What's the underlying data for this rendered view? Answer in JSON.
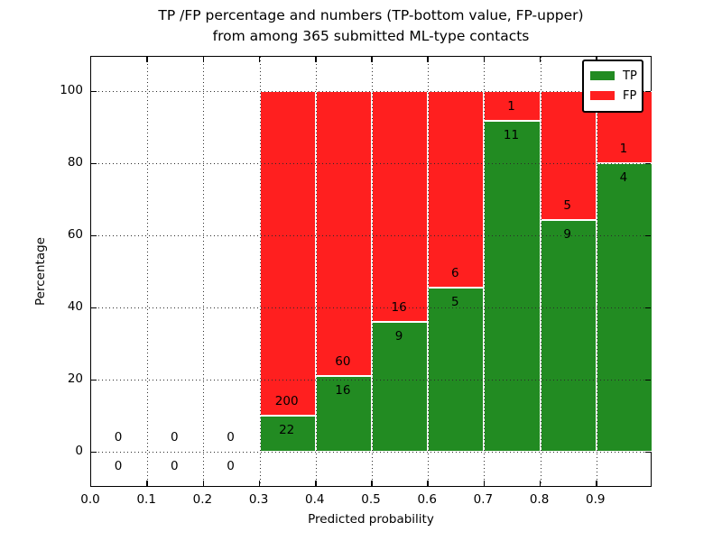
{
  "figure": {
    "title_line1": "TP /FP percentage and numbers (TP-bottom value, FP-upper)",
    "title_line2": "from among 365 submitted ML-type contacts"
  },
  "axes": {
    "xlabel": "Predicted probability",
    "ylabel": "Percentage",
    "x_ticks": [
      "0.0",
      "0.1",
      "0.2",
      "0.3",
      "0.4",
      "0.5",
      "0.6",
      "0.7",
      "0.8",
      "0.9"
    ],
    "y_ticks": [
      "0",
      "20",
      "40",
      "60",
      "80",
      "100"
    ],
    "xlim": [
      0.0,
      1.0
    ],
    "ylim": [
      -10,
      110
    ],
    "grid": "dotted"
  },
  "legend": {
    "position": "upper-right",
    "entries": [
      {
        "label": "TP",
        "color": "#228b22"
      },
      {
        "label": "FP",
        "color": "#ff1f1f"
      }
    ]
  },
  "colors": {
    "tp": "#228b22",
    "fp": "#ff1f1f",
    "bar_edge": "#ffffff",
    "grid": "#2b2b2b",
    "background": "#ffffff",
    "text": "#000000"
  },
  "chart_data": {
    "type": "bar",
    "stacked": true,
    "units": "percent of bin total; stacks normalized to 100%",
    "title": "TP /FP percentage and numbers (TP-bottom value, FP-upper) from among 365 submitted ML-type contacts",
    "xlabel": "Predicted probability",
    "ylabel": "Percentage",
    "total_contacts": 365,
    "bin_width": 0.1,
    "series_order_note": "TP green on bottom, FP red on top; labels show raw counts (FP above boundary, TP below)",
    "bins": [
      {
        "x0": 0.0,
        "x1": 0.1,
        "tp": 0,
        "fp": 0
      },
      {
        "x0": 0.1,
        "x1": 0.2,
        "tp": 0,
        "fp": 0
      },
      {
        "x0": 0.2,
        "x1": 0.3,
        "tp": 0,
        "fp": 0
      },
      {
        "x0": 0.3,
        "x1": 0.4,
        "tp": 22,
        "fp": 200
      },
      {
        "x0": 0.4,
        "x1": 0.5,
        "tp": 16,
        "fp": 60
      },
      {
        "x0": 0.5,
        "x1": 0.6,
        "tp": 9,
        "fp": 16
      },
      {
        "x0": 0.6,
        "x1": 0.7,
        "tp": 5,
        "fp": 6
      },
      {
        "x0": 0.7,
        "x1": 0.8,
        "tp": 11,
        "fp": 1
      },
      {
        "x0": 0.8,
        "x1": 0.9,
        "tp": 9,
        "fp": 5
      },
      {
        "x0": 0.9,
        "x1": 1.0,
        "tp": 4,
        "fp": 1
      }
    ]
  }
}
